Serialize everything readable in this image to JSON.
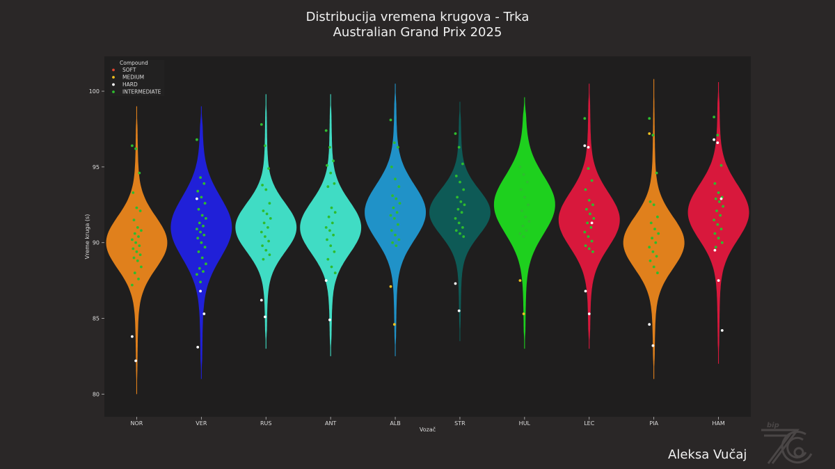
{
  "title_line1": "Distribucija vremena krugova - Trka",
  "title_line2": "Australian Grand Prix 2025",
  "author": "Aleksa Vučaj",
  "colors": {
    "background": "#2a2727",
    "plot_background": "#1f1e1e",
    "SOFT": "#e0452f",
    "MEDIUM": "#f0c020",
    "HARD": "#ffffff",
    "INTERMEDIATE": "#2ebc2e"
  },
  "chart_data": {
    "type": "violin",
    "xlabel": "Vozač",
    "ylabel": "Vreme kruga (s)",
    "ylim": [
      78.5,
      102.3
    ],
    "yticks": [
      80,
      85,
      90,
      95,
      100
    ],
    "legend": {
      "title": "Compound",
      "placement": "top-left",
      "entries": [
        "SOFT",
        "MEDIUM",
        "HARD",
        "INTERMEDIATE"
      ]
    },
    "drivers": [
      {
        "name": "NOR",
        "color": "#e0801c",
        "min": 80.0,
        "max": 99.0,
        "mode": 90.0,
        "spread": 1.7,
        "points": [
          {
            "c": "INTERMEDIATE",
            "y": [
              96.4,
              96.2,
              94.6,
              93.3,
              92.3,
              92.1,
              91.5,
              91.0,
              90.8,
              90.6,
              90.4,
              90.2,
              90.0,
              89.8,
              89.6,
              89.4,
              89.2,
              89.0,
              88.8,
              88.4,
              88.0,
              87.6,
              87.2
            ]
          },
          {
            "c": "HARD",
            "y": [
              83.8,
              82.2
            ]
          }
        ]
      },
      {
        "name": "VER",
        "color": "#2020d8",
        "min": 81.0,
        "max": 99.0,
        "mode": 91.0,
        "spread": 2.0,
        "points": [
          {
            "c": "INTERMEDIATE",
            "y": [
              96.8,
              94.3,
              93.9,
              93.4,
              93.0,
              92.6,
              92.2,
              91.8,
              91.6,
              91.3,
              91.1,
              90.9,
              90.7,
              90.5,
              90.3,
              90.0,
              89.7,
              89.4,
              89.0,
              88.6,
              88.3,
              88.1,
              87.9,
              87.4
            ]
          },
          {
            "c": "HARD",
            "y": [
              92.9,
              86.8,
              85.3,
              83.1
            ]
          }
        ]
      },
      {
        "name": "RUS",
        "color": "#40dcc4",
        "min": 83.0,
        "max": 99.8,
        "mode": 91.0,
        "spread": 1.6,
        "points": [
          {
            "c": "INTERMEDIATE",
            "y": [
              97.8,
              96.4,
              94.9,
              93.8,
              93.5,
              92.6,
              92.1,
              91.9,
              91.6,
              91.3,
              91.0,
              90.7,
              90.4,
              90.1,
              89.8,
              89.5,
              89.2,
              88.9
            ]
          },
          {
            "c": "HARD",
            "y": [
              86.2,
              85.1
            ]
          }
        ]
      },
      {
        "name": "ANT",
        "color": "#40dcc4",
        "min": 82.5,
        "max": 99.8,
        "mode": 91.0,
        "spread": 1.7,
        "points": [
          {
            "c": "INTERMEDIATE",
            "y": [
              97.4,
              96.3,
              95.4,
              95.1,
              94.6,
              93.9,
              93.7,
              92.3,
              92.0,
              91.7,
              91.3,
              91.0,
              90.8,
              90.5,
              90.2,
              89.8,
              89.4,
              88.9,
              88.4,
              88.0
            ]
          },
          {
            "c": "HARD",
            "y": [
              87.5,
              84.9
            ]
          }
        ]
      },
      {
        "name": "ALB",
        "color": "#2092c8",
        "min": 82.5,
        "max": 100.5,
        "mode": 92.0,
        "spread": 1.8,
        "points": [
          {
            "c": "INTERMEDIATE",
            "y": [
              98.1,
              96.6,
              96.3,
              95.0,
              94.2,
              93.7,
              93.1,
              92.9,
              92.6,
              92.3,
              92.0,
              91.8,
              91.6,
              91.2,
              90.8,
              90.5,
              90.2,
              90.0,
              89.8
            ]
          },
          {
            "c": "MEDIUM",
            "y": [
              87.1,
              84.6
            ]
          }
        ]
      },
      {
        "name": "STR",
        "color": "#0e5a56",
        "min": 83.5,
        "max": 99.3,
        "mode": 92.0,
        "spread": 1.5,
        "points": [
          {
            "c": "INTERMEDIATE",
            "y": [
              97.2,
              96.3,
              95.2,
              94.4,
              94.0,
              93.5,
              93.0,
              92.7,
              92.5,
              92.2,
              92.0,
              91.6,
              91.3,
              91.0,
              90.8,
              90.6,
              90.4
            ]
          },
          {
            "c": "HARD",
            "y": [
              87.3,
              85.5
            ]
          }
        ]
      },
      {
        "name": "HUL",
        "color": "#1ed01e",
        "min": 83.0,
        "max": 99.6,
        "mode": 92.5,
        "spread": 1.9,
        "points": [
          {
            "c": "INTERMEDIATE",
            "y": [
              95.0,
              94.5,
              94.0,
              93.5,
              93.0,
              92.5,
              92.1,
              91.7,
              91.4,
              91.1,
              90.8,
              90.6,
              90.4
            ]
          },
          {
            "c": "MEDIUM",
            "y": [
              87.5,
              85.3
            ]
          }
        ]
      },
      {
        "name": "LEC",
        "color": "#d8183c",
        "min": 83.0,
        "max": 100.5,
        "mode": 91.5,
        "spread": 1.8,
        "points": [
          {
            "c": "INTERMEDIATE",
            "y": [
              98.2,
              94.9,
              94.1,
              93.5,
              92.8,
              92.5,
              92.2,
              91.9,
              91.6,
              91.3,
              91.0,
              90.7,
              90.4,
              90.1,
              89.8,
              89.6,
              89.4
            ]
          },
          {
            "c": "HARD",
            "y": [
              96.4,
              96.3,
              91.3,
              86.8,
              85.3
            ]
          }
        ]
      },
      {
        "name": "PIA",
        "color": "#e0801c",
        "min": 81.0,
        "max": 100.8,
        "mode": 90.0,
        "spread": 1.7,
        "points": [
          {
            "c": "INTERMEDIATE",
            "y": [
              98.2,
              97.1,
              94.6,
              92.7,
              92.5,
              91.7,
              91.3,
              90.9,
              90.6,
              90.3,
              90.0,
              89.7,
              89.4,
              89.1,
              88.8,
              88.4,
              88.0
            ]
          },
          {
            "c": "MEDIUM",
            "y": [
              97.2
            ]
          },
          {
            "c": "HARD",
            "y": [
              84.6,
              83.2
            ]
          }
        ]
      },
      {
        "name": "HAM",
        "color": "#d8183c",
        "min": 82.0,
        "max": 100.6,
        "mode": 92.0,
        "spread": 1.8,
        "points": [
          {
            "c": "INTERMEDIATE",
            "y": [
              98.3,
              97.1,
              95.1,
              93.9,
              93.3,
              93.0,
              92.9,
              92.7,
              92.4,
              92.1,
              91.8,
              91.5,
              91.2,
              90.9,
              90.6,
              90.3,
              90.0,
              89.7
            ]
          },
          {
            "c": "HARD",
            "y": [
              96.8,
              96.6,
              92.9,
              89.5,
              87.5,
              84.2
            ]
          }
        ]
      }
    ]
  }
}
